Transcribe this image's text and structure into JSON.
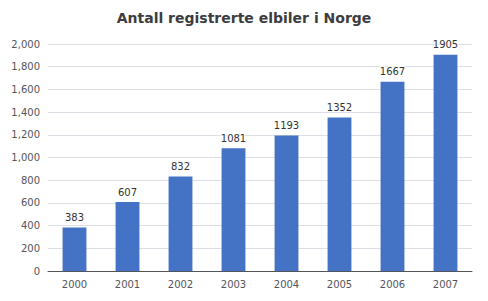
{
  "chart_data": {
    "type": "bar",
    "title": "Antall registrerte elbiler i Norge",
    "categories": [
      "2000",
      "2001",
      "2002",
      "2003",
      "2004",
      "2005",
      "2006",
      "2007"
    ],
    "values": [
      383,
      607,
      832,
      1081,
      1193,
      1352,
      1667,
      1905
    ],
    "color": "#4472C4",
    "ylim": [
      0,
      2000
    ],
    "yticks": [
      0,
      200,
      400,
      600,
      800,
      1000,
      1200,
      1400,
      1600,
      1800,
      2000
    ],
    "grid": true,
    "data_labels": true
  }
}
